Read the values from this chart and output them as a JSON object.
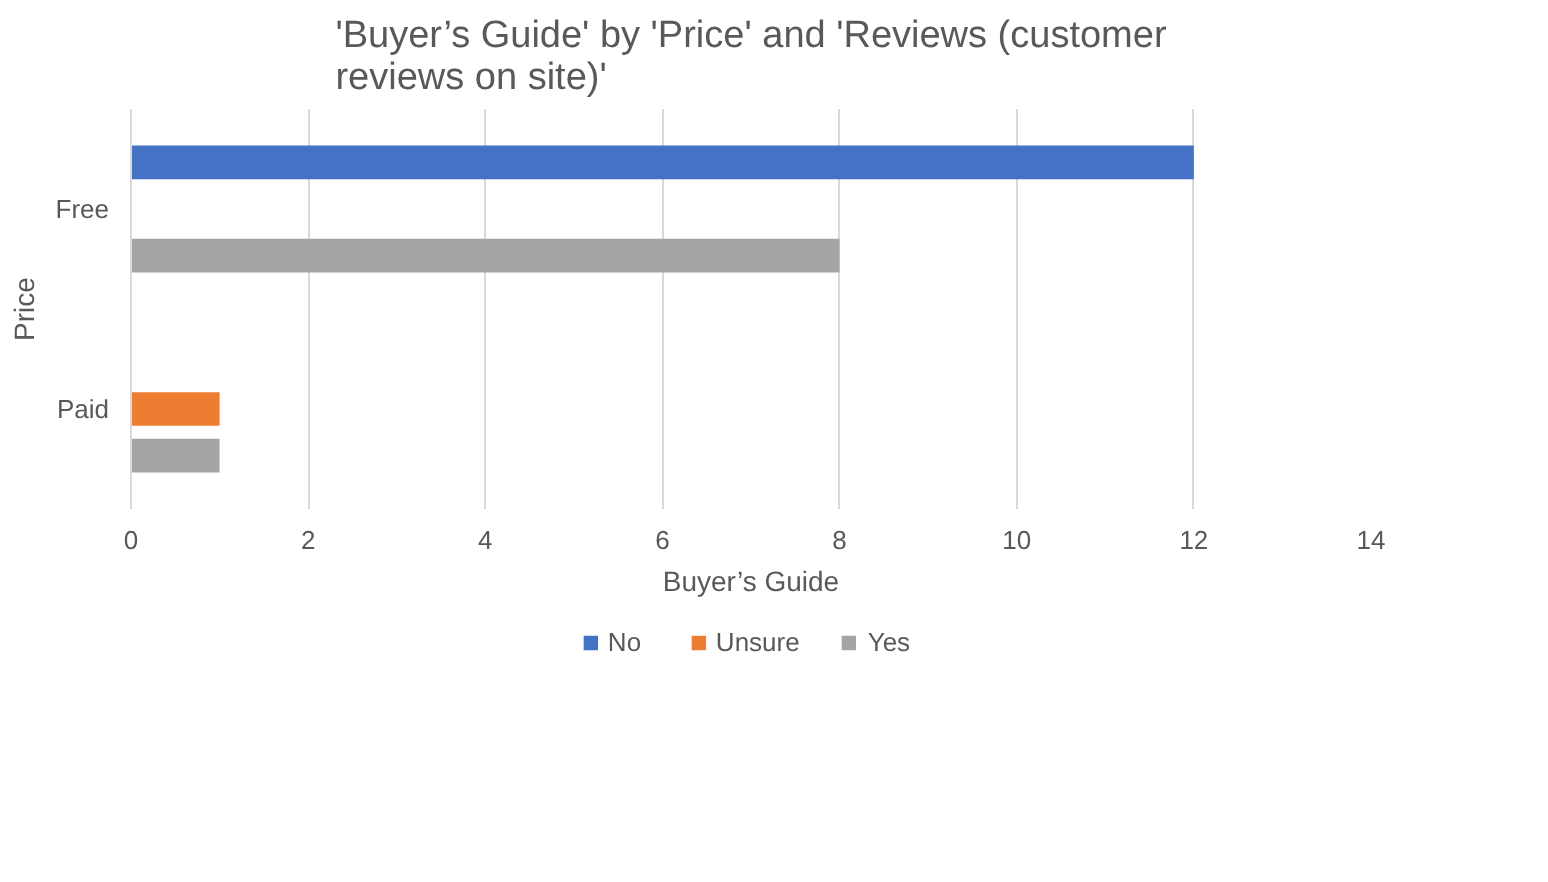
{
  "chart_data": {
    "type": "bar",
    "orientation": "horizontal",
    "title": "'Buyer’s Guide' by 'Price' and 'Reviews (customer reviews on site)'",
    "xlabel": "Buyer’s Guide",
    "ylabel": "Price",
    "categories": [
      "Free",
      "Paid"
    ],
    "series": [
      {
        "name": "No",
        "color": "#4472c4",
        "values": [
          12,
          null
        ]
      },
      {
        "name": "Unsure",
        "color": "#ed7d31",
        "values": [
          null,
          1
        ]
      },
      {
        "name": "Yes",
        "color": "#a5a5a5",
        "values": [
          8,
          1
        ]
      }
    ],
    "xlim": [
      0,
      14
    ],
    "xticks": [
      0,
      2,
      4,
      6,
      8,
      10,
      12,
      14
    ],
    "grid": "x",
    "legend": "bottom"
  }
}
